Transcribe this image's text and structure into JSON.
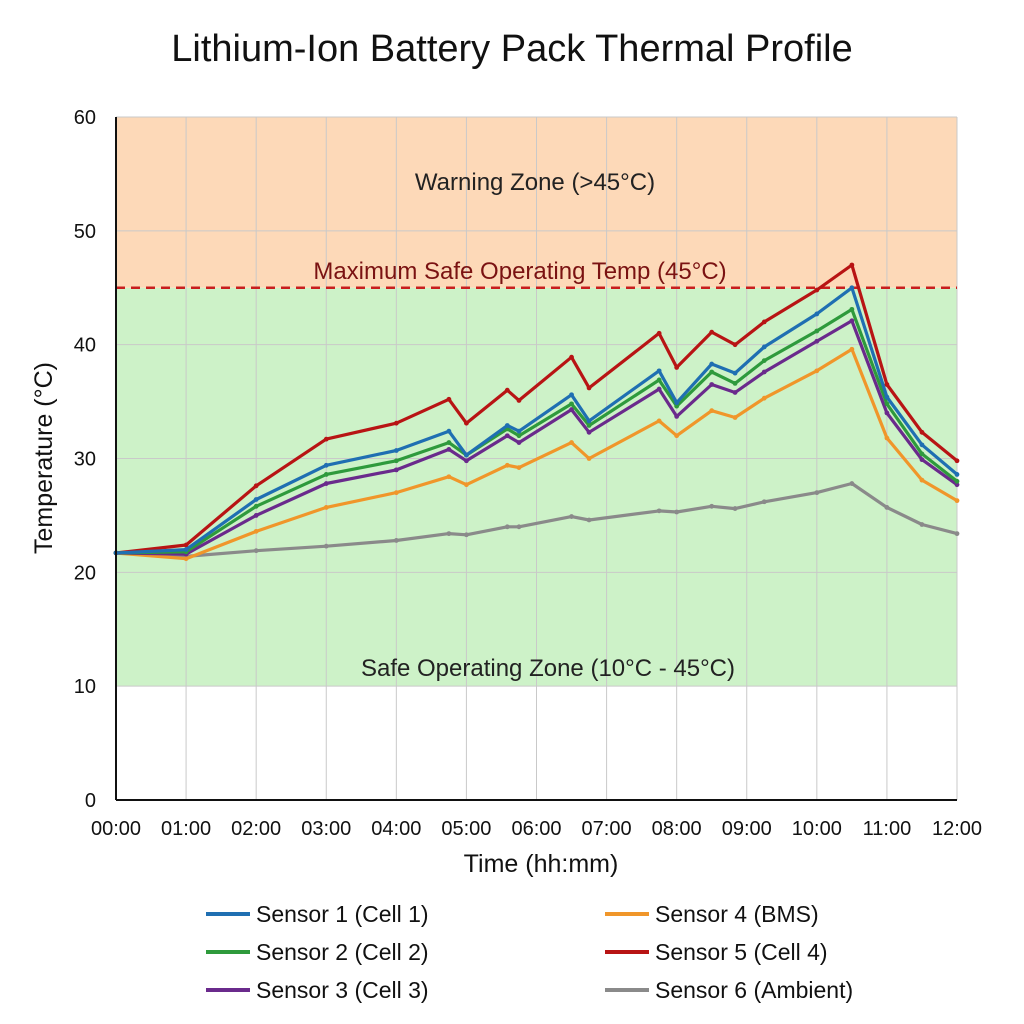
{
  "chart_data": {
    "type": "line",
    "title": "Lithium-Ion Battery Pack Thermal Profile",
    "xlabel": "Time (hh:mm)",
    "ylabel": "Temperature (°C)",
    "ylim": [
      0,
      60
    ],
    "yticks": [
      "0",
      "10",
      "20",
      "30",
      "40",
      "50",
      "60"
    ],
    "xlim": [
      "00:00",
      "12:00"
    ],
    "xticks": [
      "00:00",
      "01:00",
      "02:00",
      "03:00",
      "04:00",
      "05:00",
      "06:00",
      "07:00",
      "08:00",
      "09:00",
      "10:00",
      "11:00",
      "12:00"
    ],
    "grid": true,
    "legend_position": "bottom",
    "zones": [
      {
        "name": "Safe Operating Zone (10°C - 45°C)",
        "from": 10,
        "to": 45,
        "color": "#cdf2c8"
      },
      {
        "name": "Warning Zone (>45°C)",
        "from": 45,
        "to": 60,
        "color": "#fdd9b8"
      }
    ],
    "threshold": {
      "label": "Maximum Safe Operating Temp (45°C)",
      "value": 45,
      "color": "#c81e1e"
    },
    "series": [
      {
        "name": "Sensor 1 (Cell 1)",
        "color": "#1f6fb2",
        "x": [
          "00:00",
          "01:00",
          "02:00",
          "03:00",
          "04:00",
          "04:45",
          "05:00",
          "05:35",
          "05:45",
          "06:30",
          "06:45",
          "07:45",
          "08:00",
          "08:30",
          "08:50",
          "09:15",
          "10:00",
          "10:30",
          "11:00",
          "11:30",
          "12:00"
        ],
        "values": [
          21.7,
          22.0,
          26.4,
          29.4,
          30.7,
          32.4,
          30.3,
          32.9,
          32.4,
          35.6,
          33.3,
          37.7,
          34.9,
          38.3,
          37.5,
          39.8,
          42.7,
          45.0,
          35.4,
          31.2,
          28.6
        ]
      },
      {
        "name": "Sensor 2 (Cell 2)",
        "color": "#2e9a3c",
        "x": [
          "00:00",
          "01:00",
          "02:00",
          "03:00",
          "04:00",
          "04:45",
          "05:00",
          "05:35",
          "05:45",
          "06:30",
          "06:45",
          "07:45",
          "08:00",
          "08:30",
          "08:50",
          "09:15",
          "10:00",
          "10:30",
          "11:00",
          "11:30",
          "12:00"
        ],
        "values": [
          21.7,
          21.8,
          25.8,
          28.6,
          29.8,
          31.4,
          30.3,
          32.6,
          32.0,
          34.8,
          32.9,
          36.9,
          34.6,
          37.6,
          36.6,
          38.6,
          41.2,
          43.1,
          34.8,
          30.4,
          28.0
        ]
      },
      {
        "name": "Sensor 3 (Cell 3)",
        "color": "#6a2a8c",
        "x": [
          "00:00",
          "01:00",
          "02:00",
          "03:00",
          "04:00",
          "04:45",
          "05:00",
          "05:35",
          "05:45",
          "06:30",
          "06:45",
          "07:45",
          "08:00",
          "08:30",
          "08:50",
          "09:15",
          "10:00",
          "10:30",
          "11:00",
          "11:30",
          "12:00"
        ],
        "values": [
          21.7,
          21.6,
          25.0,
          27.8,
          29.0,
          30.8,
          29.8,
          32.0,
          31.4,
          34.3,
          32.3,
          36.1,
          33.7,
          36.5,
          35.8,
          37.6,
          40.3,
          42.1,
          34.0,
          29.9,
          27.7
        ]
      },
      {
        "name": "Sensor 4 (BMS)",
        "color": "#f0962a",
        "x": [
          "00:00",
          "01:00",
          "02:00",
          "03:00",
          "04:00",
          "04:45",
          "05:00",
          "05:35",
          "05:45",
          "06:30",
          "06:45",
          "07:45",
          "08:00",
          "08:30",
          "08:50",
          "09:15",
          "10:00",
          "10:30",
          "11:00",
          "11:30",
          "12:00"
        ],
        "values": [
          21.7,
          21.2,
          23.6,
          25.7,
          27.0,
          28.4,
          27.7,
          29.4,
          29.2,
          31.4,
          30.0,
          33.3,
          32.0,
          34.2,
          33.6,
          35.3,
          37.7,
          39.6,
          31.8,
          28.1,
          26.3
        ]
      },
      {
        "name": "Sensor 5 (Cell 4)",
        "color": "#b81414",
        "x": [
          "00:00",
          "01:00",
          "02:00",
          "03:00",
          "04:00",
          "04:45",
          "05:00",
          "05:35",
          "05:45",
          "06:30",
          "06:45",
          "07:45",
          "08:00",
          "08:30",
          "08:50",
          "09:15",
          "10:00",
          "10:30",
          "11:00",
          "11:30",
          "12:00"
        ],
        "values": [
          21.7,
          22.4,
          27.6,
          31.7,
          33.1,
          35.2,
          33.1,
          36.0,
          35.1,
          38.9,
          36.2,
          41.0,
          38.0,
          41.1,
          40.0,
          42.0,
          44.8,
          47.0,
          36.5,
          32.3,
          29.8
        ]
      },
      {
        "name": "Sensor 6 (Ambient)",
        "color": "#8a8a8a",
        "x": [
          "00:00",
          "01:00",
          "02:00",
          "03:00",
          "04:00",
          "04:45",
          "05:00",
          "05:35",
          "05:45",
          "06:30",
          "06:45",
          "07:45",
          "08:00",
          "08:30",
          "08:50",
          "09:15",
          "10:00",
          "10:30",
          "11:00",
          "11:30",
          "12:00"
        ],
        "values": [
          21.7,
          21.4,
          21.9,
          22.3,
          22.8,
          23.4,
          23.3,
          24.0,
          24.0,
          24.9,
          24.6,
          25.4,
          25.3,
          25.8,
          25.6,
          26.2,
          27.0,
          27.8,
          25.7,
          24.2,
          23.4
        ]
      }
    ]
  }
}
